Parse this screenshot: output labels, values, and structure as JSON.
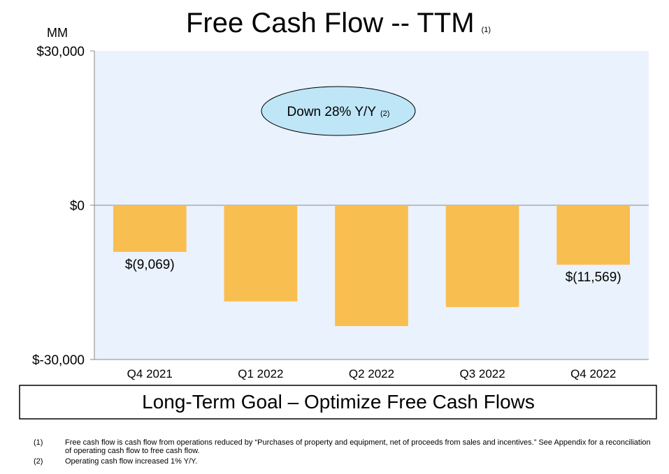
{
  "chart_data": {
    "type": "bar",
    "title": "Free Cash Flow -- TTM",
    "title_note": "(1)",
    "y_label": "MM",
    "categories": [
      "Q4 2021",
      "Q1 2022",
      "Q2 2022",
      "Q3 2022",
      "Q4 2022"
    ],
    "values": [
      -9069,
      -18700,
      -23500,
      -19800,
      -11569
    ],
    "value_labels": [
      "$(9,069)",
      null,
      null,
      null,
      "$(11,569)"
    ],
    "color": "#f9be50",
    "ylim": [
      -30000,
      30000
    ],
    "yticks": [
      {
        "value": 30000,
        "label": "$30,000"
      },
      {
        "value": 0,
        "label": "$0"
      },
      {
        "value": -30000,
        "label": "$-30,000"
      }
    ],
    "annotation": "Down 28% Y/Y",
    "annotation_note": "(2)"
  },
  "goal": "Long-Term Goal – Optimize Free Cash Flows",
  "footnotes": [
    {
      "number": "(1)",
      "text": "Free cash flow is cash flow from operations reduced by “Purchases of property and equipment, net of proceeds from sales and incentives.” See Appendix for a reconciliation of operating cash flow to free cash flow."
    },
    {
      "number": "(2)",
      "text": "Operating cash flow increased 1% Y/Y."
    }
  ]
}
